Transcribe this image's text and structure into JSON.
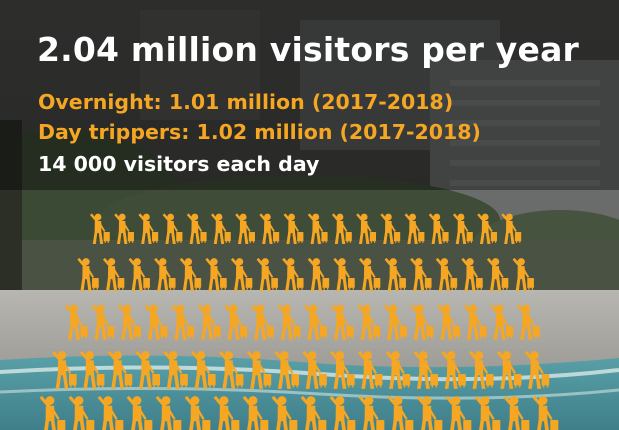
{
  "headline": "2.04 million visitors per year",
  "stats": {
    "overnight": "Overnight: 1.01 million (2017-2018)",
    "day_trippers": "Day trippers: 1.02 million (2017-2018)",
    "daily": "14 000 visitors each day"
  },
  "colors": {
    "accent": "#f5a623",
    "text": "#ffffff"
  },
  "icon": "traveller-with-suitcase-icon"
}
